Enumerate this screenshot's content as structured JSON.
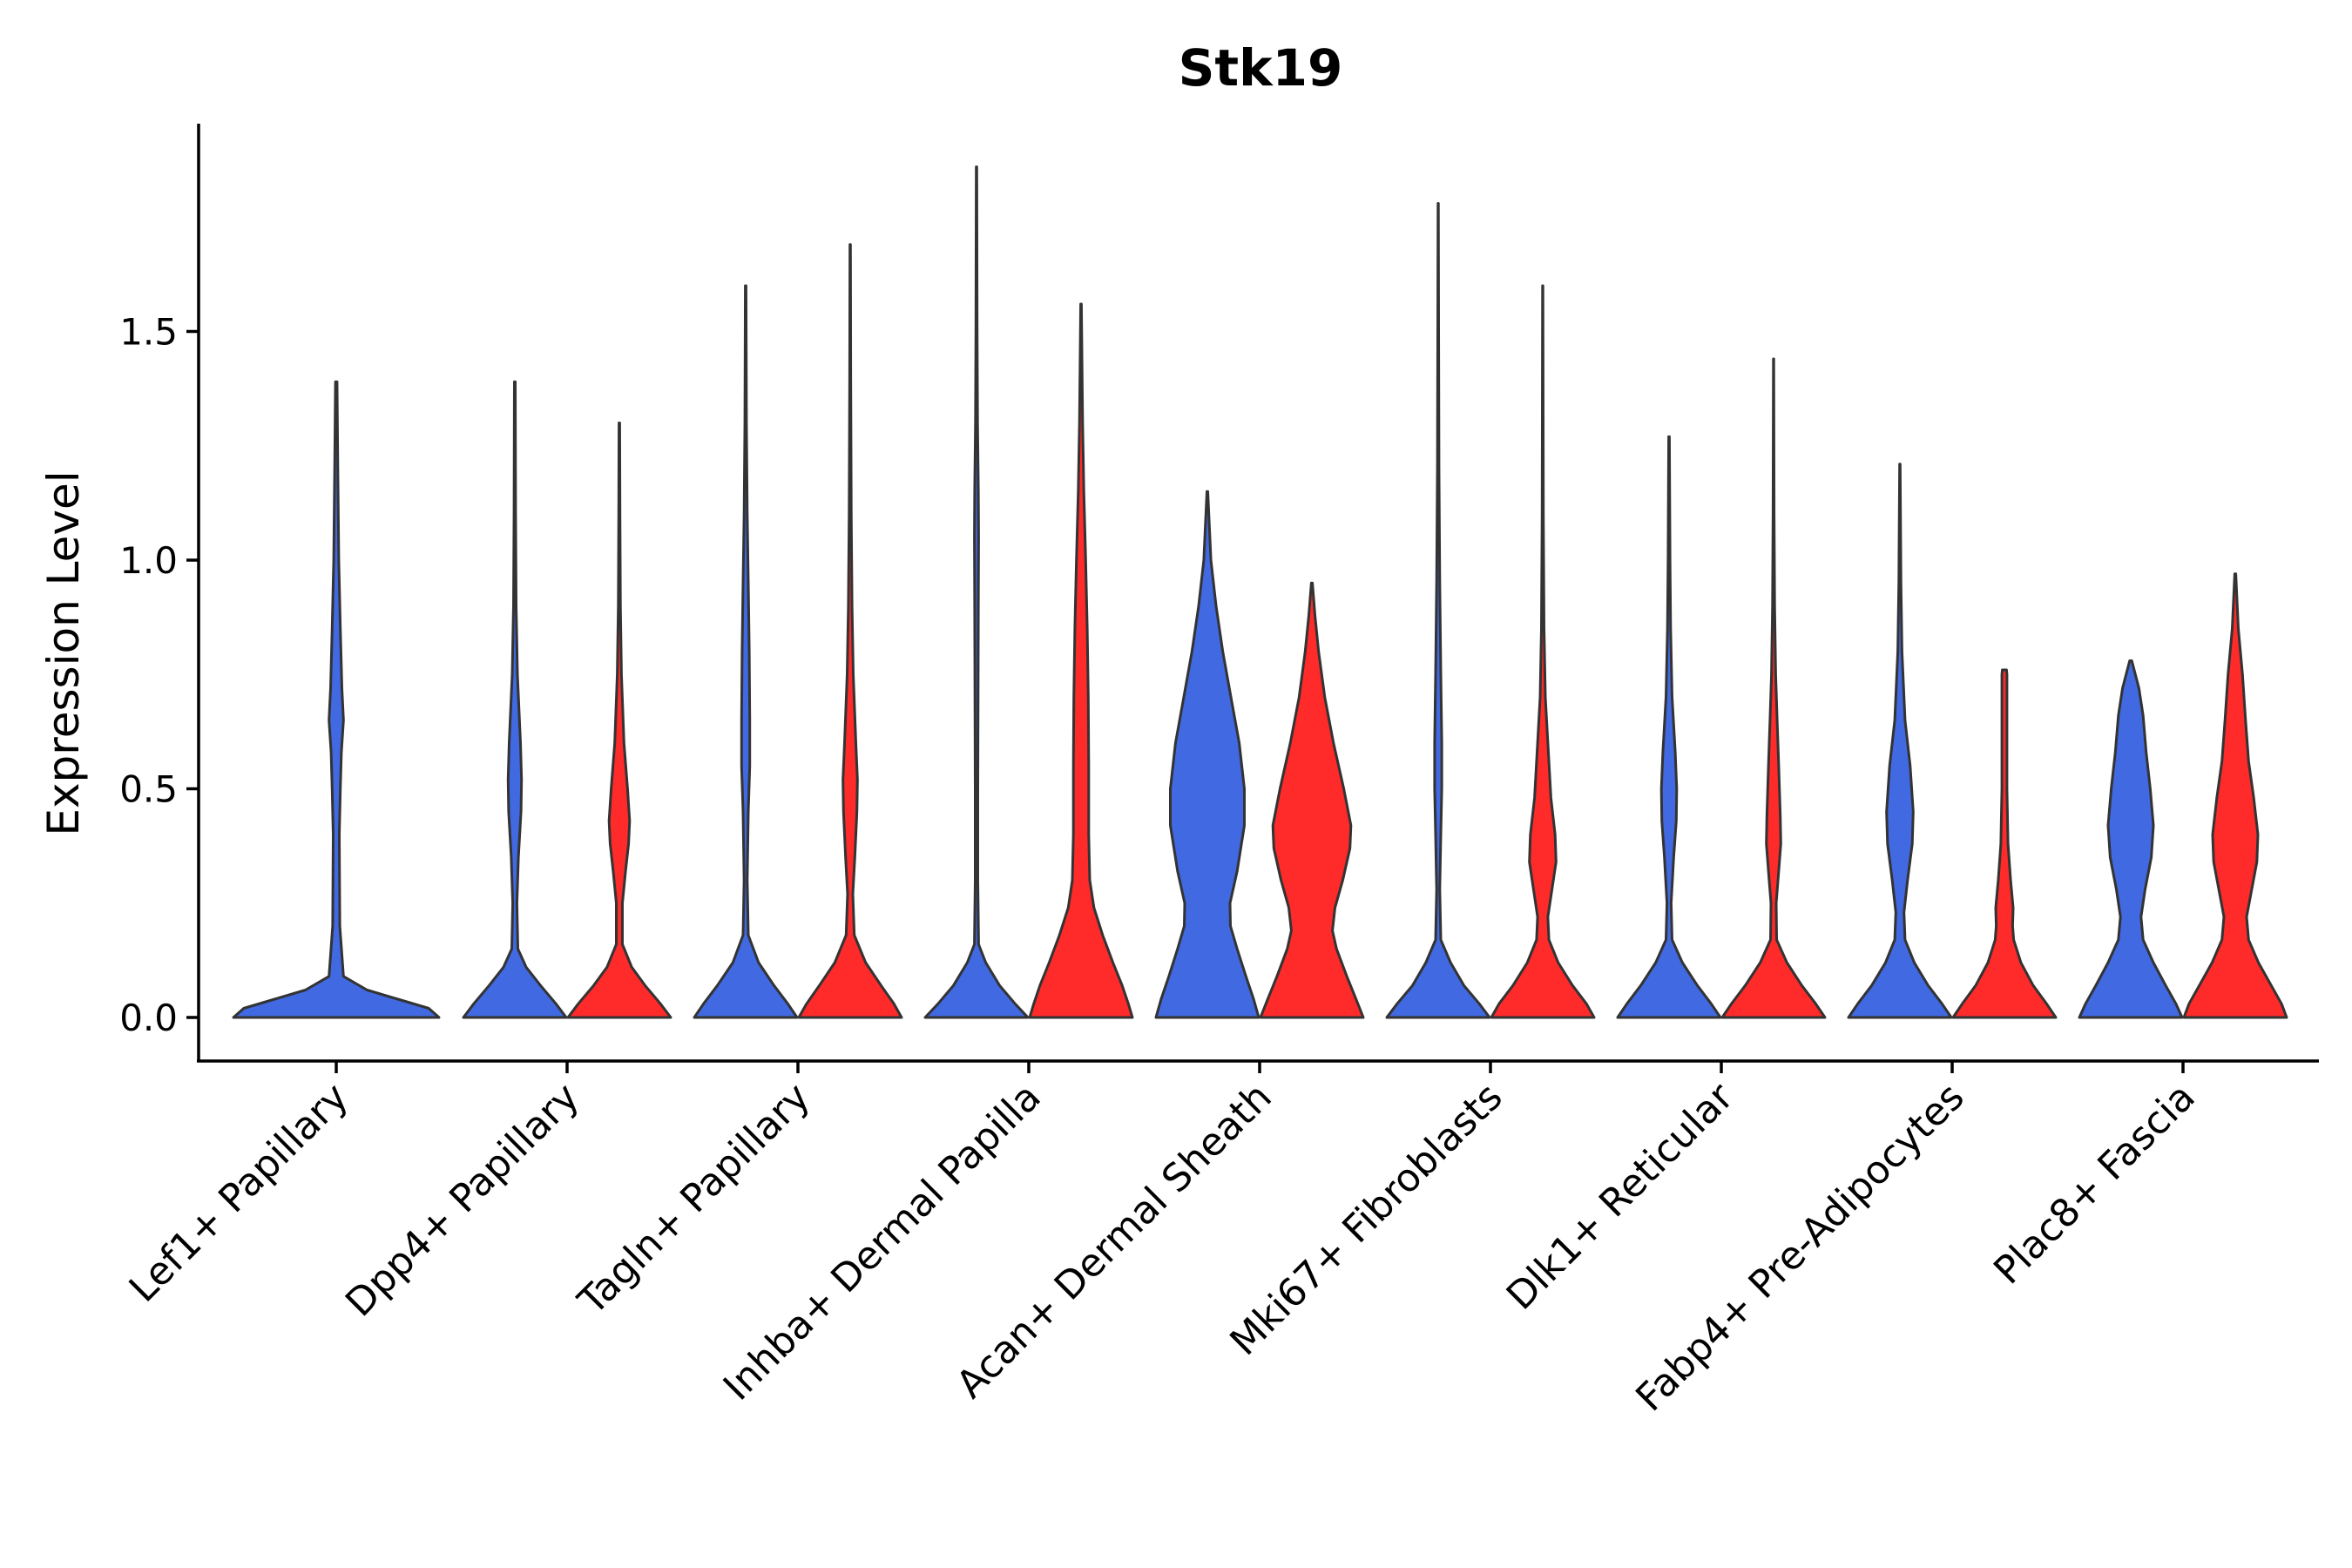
{
  "chart_data": {
    "type": "violin",
    "title": "Stk19",
    "xlabel": "",
    "ylabel": "Expression Level",
    "ylim": [
      -0.1,
      1.95
    ],
    "yticks": [
      "0.0",
      "0.5",
      "1.0",
      "1.5"
    ],
    "grid": false,
    "legend": "none",
    "series": [
      {
        "name": "group-1",
        "color": "#4169E1"
      },
      {
        "name": "group-2",
        "color": "#FF2A2A"
      }
    ],
    "categories": [
      "Lef1+ Papillary",
      "Dpp4+ Papillary",
      "Tagln+ Papillary",
      "Inhba+ Dermal Papilla",
      "Acan+ Dermal Sheath",
      "Mki67+ Fibroblasts",
      "Dlk1+ Reticular",
      "Fabp4+ Pre-Adipocytes",
      "Plac8+ Fascia"
    ],
    "violins": [
      {
        "category": "Lef1+ Papillary",
        "series": "group-1",
        "max": 1.39,
        "profile": [
          [
            0,
            1.0
          ],
          [
            0.02,
            0.9
          ],
          [
            0.04,
            0.6
          ],
          [
            0.06,
            0.3
          ],
          [
            0.09,
            0.07
          ],
          [
            0.2,
            0.035
          ],
          [
            0.4,
            0.03
          ],
          [
            0.5,
            0.04
          ],
          [
            0.58,
            0.05
          ],
          [
            0.65,
            0.07
          ],
          [
            0.72,
            0.055
          ],
          [
            0.85,
            0.04
          ],
          [
            1.0,
            0.025
          ],
          [
            1.2,
            0.015
          ],
          [
            1.39,
            0.008
          ]
        ]
      },
      {
        "category": "Dpp4+ Papillary",
        "series": "group-1",
        "max": 1.39,
        "profile": [
          [
            0,
            1.0
          ],
          [
            0.03,
            0.8
          ],
          [
            0.07,
            0.5
          ],
          [
            0.11,
            0.22
          ],
          [
            0.15,
            0.06
          ],
          [
            0.25,
            0.04
          ],
          [
            0.35,
            0.07
          ],
          [
            0.45,
            0.12
          ],
          [
            0.52,
            0.13
          ],
          [
            0.6,
            0.11
          ],
          [
            0.75,
            0.05
          ],
          [
            0.9,
            0.025
          ],
          [
            1.1,
            0.015
          ],
          [
            1.39,
            0.008
          ]
        ]
      },
      {
        "category": "Dpp4+ Papillary",
        "series": "group-2",
        "max": 1.3,
        "profile": [
          [
            0,
            1.0
          ],
          [
            0.03,
            0.8
          ],
          [
            0.07,
            0.5
          ],
          [
            0.11,
            0.24
          ],
          [
            0.16,
            0.06
          ],
          [
            0.25,
            0.06
          ],
          [
            0.32,
            0.12
          ],
          [
            0.38,
            0.18
          ],
          [
            0.43,
            0.2
          ],
          [
            0.5,
            0.16
          ],
          [
            0.6,
            0.09
          ],
          [
            0.75,
            0.04
          ],
          [
            0.9,
            0.02
          ],
          [
            1.1,
            0.012
          ],
          [
            1.3,
            0.006
          ]
        ]
      },
      {
        "category": "Tagln+ Papillary",
        "series": "group-1",
        "max": 1.6,
        "profile": [
          [
            0,
            1.0
          ],
          [
            0.03,
            0.82
          ],
          [
            0.07,
            0.55
          ],
          [
            0.12,
            0.25
          ],
          [
            0.18,
            0.05
          ],
          [
            0.3,
            0.03
          ],
          [
            0.45,
            0.05
          ],
          [
            0.55,
            0.08
          ],
          [
            0.65,
            0.08
          ],
          [
            0.8,
            0.07
          ],
          [
            0.95,
            0.05
          ],
          [
            1.1,
            0.03
          ],
          [
            1.3,
            0.015
          ],
          [
            1.6,
            0.006
          ]
        ]
      },
      {
        "category": "Tagln+ Papillary",
        "series": "group-2",
        "max": 1.69,
        "profile": [
          [
            0,
            1.0
          ],
          [
            0.03,
            0.85
          ],
          [
            0.07,
            0.6
          ],
          [
            0.12,
            0.3
          ],
          [
            0.18,
            0.08
          ],
          [
            0.27,
            0.05
          ],
          [
            0.35,
            0.09
          ],
          [
            0.45,
            0.13
          ],
          [
            0.52,
            0.14
          ],
          [
            0.6,
            0.11
          ],
          [
            0.75,
            0.06
          ],
          [
            0.9,
            0.035
          ],
          [
            1.1,
            0.02
          ],
          [
            1.4,
            0.01
          ],
          [
            1.69,
            0.005
          ]
        ]
      },
      {
        "category": "Inhba+ Dermal Papilla",
        "series": "group-1",
        "max": 1.86,
        "profile": [
          [
            0,
            1.0
          ],
          [
            0.03,
            0.75
          ],
          [
            0.07,
            0.45
          ],
          [
            0.12,
            0.18
          ],
          [
            0.16,
            0.04
          ],
          [
            0.3,
            0.025
          ],
          [
            0.5,
            0.025
          ],
          [
            0.7,
            0.03
          ],
          [
            0.9,
            0.035
          ],
          [
            1.05,
            0.04
          ],
          [
            1.15,
            0.035
          ],
          [
            1.3,
            0.02
          ],
          [
            1.5,
            0.012
          ],
          [
            1.86,
            0.005
          ]
        ]
      },
      {
        "category": "Inhba+ Dermal Papilla",
        "series": "group-2",
        "max": 1.56,
        "profile": [
          [
            0,
            1.0
          ],
          [
            0.03,
            0.92
          ],
          [
            0.07,
            0.8
          ],
          [
            0.12,
            0.62
          ],
          [
            0.18,
            0.42
          ],
          [
            0.24,
            0.25
          ],
          [
            0.3,
            0.17
          ],
          [
            0.4,
            0.15
          ],
          [
            0.55,
            0.15
          ],
          [
            0.7,
            0.14
          ],
          [
            0.85,
            0.12
          ],
          [
            1.0,
            0.09
          ],
          [
            1.15,
            0.055
          ],
          [
            1.3,
            0.03
          ],
          [
            1.56,
            0.006
          ]
        ]
      },
      {
        "category": "Acan+ Dermal Sheath",
        "series": "group-1",
        "max": 1.15,
        "profile": [
          [
            0,
            1.0
          ],
          [
            0.04,
            0.9
          ],
          [
            0.09,
            0.75
          ],
          [
            0.15,
            0.58
          ],
          [
            0.2,
            0.45
          ],
          [
            0.25,
            0.44
          ],
          [
            0.32,
            0.58
          ],
          [
            0.42,
            0.72
          ],
          [
            0.5,
            0.72
          ],
          [
            0.6,
            0.62
          ],
          [
            0.7,
            0.46
          ],
          [
            0.8,
            0.3
          ],
          [
            0.9,
            0.17
          ],
          [
            1.0,
            0.07
          ],
          [
            1.15,
            0.008
          ]
        ]
      },
      {
        "category": "Acan+ Dermal Sheath",
        "series": "group-2",
        "max": 0.95,
        "profile": [
          [
            0,
            1.0
          ],
          [
            0.04,
            0.86
          ],
          [
            0.09,
            0.68
          ],
          [
            0.15,
            0.48
          ],
          [
            0.19,
            0.4
          ],
          [
            0.24,
            0.45
          ],
          [
            0.3,
            0.6
          ],
          [
            0.37,
            0.74
          ],
          [
            0.42,
            0.76
          ],
          [
            0.5,
            0.62
          ],
          [
            0.6,
            0.42
          ],
          [
            0.7,
            0.25
          ],
          [
            0.8,
            0.13
          ],
          [
            0.88,
            0.06
          ],
          [
            0.95,
            0.01
          ]
        ]
      },
      {
        "category": "Mki67+ Fibroblasts",
        "series": "group-1",
        "max": 1.78,
        "profile": [
          [
            0,
            1.0
          ],
          [
            0.03,
            0.8
          ],
          [
            0.07,
            0.5
          ],
          [
            0.12,
            0.24
          ],
          [
            0.17,
            0.05
          ],
          [
            0.28,
            0.03
          ],
          [
            0.4,
            0.05
          ],
          [
            0.5,
            0.07
          ],
          [
            0.6,
            0.07
          ],
          [
            0.75,
            0.05
          ],
          [
            0.95,
            0.03
          ],
          [
            1.2,
            0.015
          ],
          [
            1.5,
            0.008
          ],
          [
            1.78,
            0.004
          ]
        ]
      },
      {
        "category": "Mki67+ Fibroblasts",
        "series": "group-2",
        "max": 1.6,
        "profile": [
          [
            0,
            1.0
          ],
          [
            0.03,
            0.85
          ],
          [
            0.07,
            0.58
          ],
          [
            0.12,
            0.3
          ],
          [
            0.17,
            0.12
          ],
          [
            0.22,
            0.1
          ],
          [
            0.28,
            0.18
          ],
          [
            0.34,
            0.26
          ],
          [
            0.4,
            0.24
          ],
          [
            0.48,
            0.16
          ],
          [
            0.6,
            0.1
          ],
          [
            0.7,
            0.05
          ],
          [
            0.85,
            0.025
          ],
          [
            1.1,
            0.012
          ],
          [
            1.6,
            0.004
          ]
        ]
      },
      {
        "category": "Dlk1+ Reticular",
        "series": "group-1",
        "max": 1.27,
        "profile": [
          [
            0,
            1.0
          ],
          [
            0.03,
            0.82
          ],
          [
            0.07,
            0.55
          ],
          [
            0.12,
            0.26
          ],
          [
            0.17,
            0.06
          ],
          [
            0.25,
            0.04
          ],
          [
            0.35,
            0.09
          ],
          [
            0.43,
            0.14
          ],
          [
            0.5,
            0.15
          ],
          [
            0.58,
            0.12
          ],
          [
            0.7,
            0.06
          ],
          [
            0.85,
            0.03
          ],
          [
            1.0,
            0.018
          ],
          [
            1.27,
            0.006
          ]
        ]
      },
      {
        "category": "Dlk1+ Reticular",
        "series": "group-2",
        "max": 1.44,
        "profile": [
          [
            0,
            1.0
          ],
          [
            0.03,
            0.82
          ],
          [
            0.07,
            0.55
          ],
          [
            0.12,
            0.26
          ],
          [
            0.17,
            0.06
          ],
          [
            0.25,
            0.05
          ],
          [
            0.32,
            0.1
          ],
          [
            0.38,
            0.14
          ],
          [
            0.44,
            0.13
          ],
          [
            0.55,
            0.1
          ],
          [
            0.65,
            0.07
          ],
          [
            0.75,
            0.04
          ],
          [
            0.9,
            0.02
          ],
          [
            1.1,
            0.01
          ],
          [
            1.44,
            0.004
          ]
        ]
      },
      {
        "category": "Fabp4+ Pre-Adipocytes",
        "series": "group-1",
        "max": 1.21,
        "profile": [
          [
            0,
            1.0
          ],
          [
            0.03,
            0.82
          ],
          [
            0.07,
            0.55
          ],
          [
            0.12,
            0.28
          ],
          [
            0.17,
            0.1
          ],
          [
            0.23,
            0.08
          ],
          [
            0.3,
            0.15
          ],
          [
            0.38,
            0.24
          ],
          [
            0.45,
            0.26
          ],
          [
            0.55,
            0.2
          ],
          [
            0.65,
            0.1
          ],
          [
            0.8,
            0.04
          ],
          [
            0.95,
            0.02
          ],
          [
            1.21,
            0.005
          ]
        ]
      },
      {
        "category": "Fabp4+ Pre-Adipocytes",
        "series": "group-2",
        "max": 0.76,
        "profile": [
          [
            0,
            1.0
          ],
          [
            0.03,
            0.82
          ],
          [
            0.07,
            0.56
          ],
          [
            0.12,
            0.32
          ],
          [
            0.17,
            0.18
          ],
          [
            0.2,
            0.16
          ],
          [
            0.24,
            0.17
          ],
          [
            0.3,
            0.12
          ],
          [
            0.38,
            0.07
          ],
          [
            0.5,
            0.05
          ],
          [
            0.6,
            0.05
          ],
          [
            0.7,
            0.05
          ],
          [
            0.75,
            0.05
          ],
          [
            0.76,
            0.04
          ]
        ]
      },
      {
        "category": "Plac8+ Fascia",
        "series": "group-1",
        "max": 0.78,
        "profile": [
          [
            0,
            1.0
          ],
          [
            0.03,
            0.88
          ],
          [
            0.07,
            0.68
          ],
          [
            0.12,
            0.44
          ],
          [
            0.17,
            0.24
          ],
          [
            0.22,
            0.2
          ],
          [
            0.28,
            0.28
          ],
          [
            0.35,
            0.4
          ],
          [
            0.42,
            0.44
          ],
          [
            0.5,
            0.38
          ],
          [
            0.58,
            0.3
          ],
          [
            0.66,
            0.24
          ],
          [
            0.72,
            0.16
          ],
          [
            0.78,
            0.02
          ]
        ]
      },
      {
        "category": "Plac8+ Fascia",
        "series": "group-2",
        "max": 0.97,
        "profile": [
          [
            0,
            1.0
          ],
          [
            0.03,
            0.9
          ],
          [
            0.07,
            0.7
          ],
          [
            0.12,
            0.45
          ],
          [
            0.17,
            0.26
          ],
          [
            0.22,
            0.22
          ],
          [
            0.28,
            0.32
          ],
          [
            0.34,
            0.42
          ],
          [
            0.4,
            0.44
          ],
          [
            0.48,
            0.36
          ],
          [
            0.56,
            0.26
          ],
          [
            0.65,
            0.2
          ],
          [
            0.75,
            0.14
          ],
          [
            0.85,
            0.06
          ],
          [
            0.97,
            0.01
          ]
        ]
      }
    ]
  }
}
